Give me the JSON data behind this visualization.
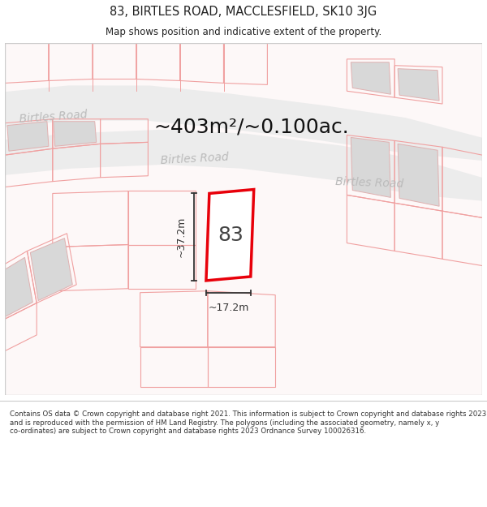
{
  "title": "83, BIRTLES ROAD, MACCLESFIELD, SK10 3JG",
  "subtitle": "Map shows position and indicative extent of the property.",
  "footer_line1": "Contains OS data © Crown copyright and database right 2021. This information is subject to",
  "footer_line2": "Crown copyright and database rights 2023 and is reproduced with the permission of",
  "footer_line3": "HM Land Registry. The polygons (including the associated geometry, namely x, y",
  "footer_line4": "co-ordinates) are subject to Crown copyright and database rights 2023 Ordnance Survey",
  "footer_line5": "100026316.",
  "area_label": "~403m²/~0.100ac.",
  "number_label": "83",
  "dim_width": "~17.2m",
  "dim_height": "~37.2m",
  "background_color": "#ffffff",
  "map_bg": "#faf7f7",
  "plot_color": "#e8000a",
  "plot_fill": "#ffffff",
  "cadastral_line_color": "#f0a0a0",
  "building_fill": "#d8d8d8",
  "building_edge": "#e0b0b0",
  "road_fill": "#ececec",
  "road_label_color": "#bbbbbb",
  "text_color": "#222222",
  "dim_color": "#333333",
  "fig_width": 6.0,
  "fig_height": 6.25,
  "dpi": 100
}
